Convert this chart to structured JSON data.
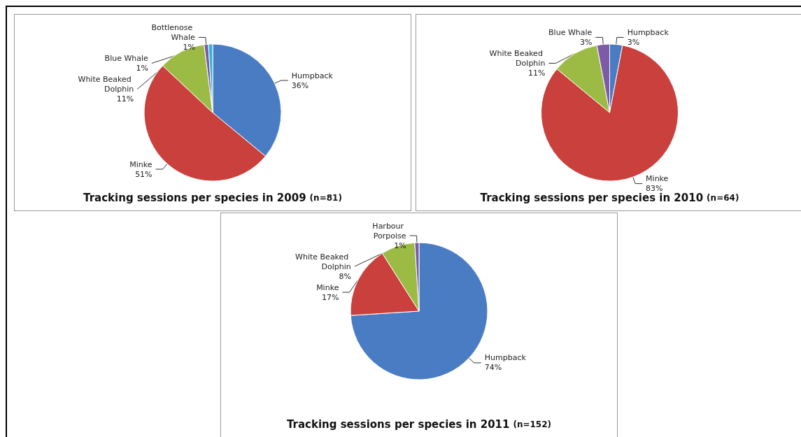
{
  "chart_data": [
    {
      "type": "pie",
      "title": "Tracking sessions per species in 2009",
      "subtitle": "(n=81)",
      "categories": [
        "Humpback",
        "Minke",
        "White Beaked Dolphin",
        "Bottlenose Whale",
        "Blue Whale"
      ],
      "values": [
        36,
        51,
        11,
        1,
        1
      ],
      "value_labels": [
        "36%",
        "51%",
        "11%",
        "1%",
        "1%"
      ],
      "colors": [
        "#4a7cc4",
        "#c9403c",
        "#9bbb45",
        "#7d5ba6",
        "#35b3d8"
      ],
      "legend": false
    },
    {
      "type": "pie",
      "title": "Tracking sessions per species in 2010",
      "subtitle": "(n=64)",
      "categories": [
        "Humpback",
        "Minke",
        "White Beaked Dolphin",
        "Blue Whale"
      ],
      "values": [
        3,
        83,
        11,
        3
      ],
      "value_labels": [
        "3%",
        "83%",
        "11%",
        "3%"
      ],
      "colors": [
        "#4a7cc4",
        "#c9403c",
        "#9bbb45",
        "#7d5ba6"
      ],
      "legend": false
    },
    {
      "type": "pie",
      "title": "Tracking sessions per species in 2011",
      "subtitle": "(n=152)",
      "categories": [
        "Humpback",
        "Minke",
        "White Beaked Dolphin",
        "Harbour Porpoise"
      ],
      "values": [
        74,
        17,
        8,
        1
      ],
      "value_labels": [
        "74%",
        "17%",
        "8%",
        "1%"
      ],
      "colors": [
        "#4a7cc4",
        "#c9403c",
        "#9bbb45",
        "#7d5ba6"
      ],
      "legend": false
    }
  ]
}
